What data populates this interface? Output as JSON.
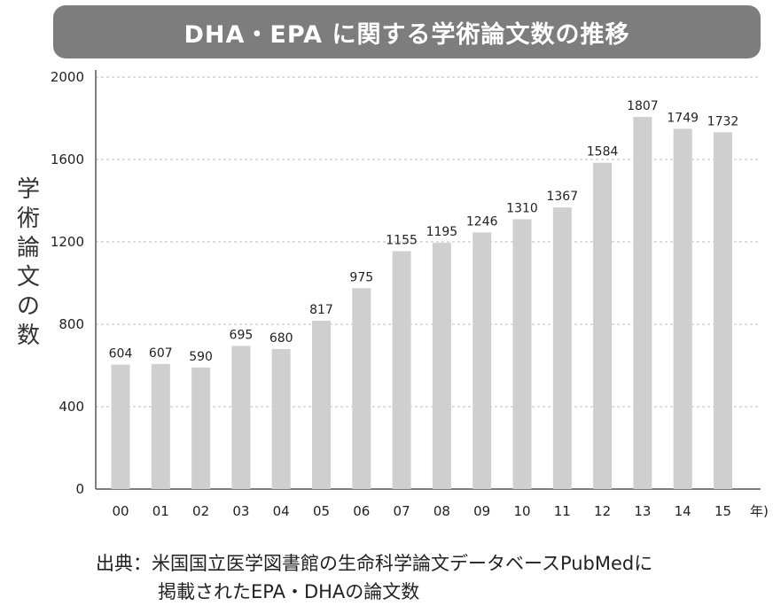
{
  "title": "DHA・EPA に関する学術論文数の推移",
  "ylabel_chars": [
    "学",
    "術",
    "論",
    "文",
    "の",
    "数"
  ],
  "source": {
    "line1": "出典：米国国立医学図書館の生命科学論文データベースPubMedに",
    "line2": "掲載されたEPA・DHAの論文数"
  },
  "chart_data": {
    "type": "bar",
    "title": "DHA・EPA に関する学術論文数の推移",
    "xlabel": "年)",
    "ylabel": "学術論文の数",
    "categories": [
      "00",
      "01",
      "02",
      "03",
      "04",
      "05",
      "06",
      "07",
      "08",
      "09",
      "10",
      "11",
      "12",
      "13",
      "14",
      "15"
    ],
    "values": [
      604,
      607,
      590,
      695,
      680,
      817,
      975,
      1155,
      1195,
      1246,
      1310,
      1367,
      1584,
      1807,
      1749,
      1732
    ],
    "ylim": [
      0,
      2000
    ],
    "yticks": [
      0,
      400,
      800,
      1200,
      1600,
      2000
    ],
    "grid": true,
    "colors": {
      "bar": "#cfcfcf",
      "grid": "#bdbdbd",
      "axis": "#555555",
      "banner": "#7d7d7d"
    }
  }
}
